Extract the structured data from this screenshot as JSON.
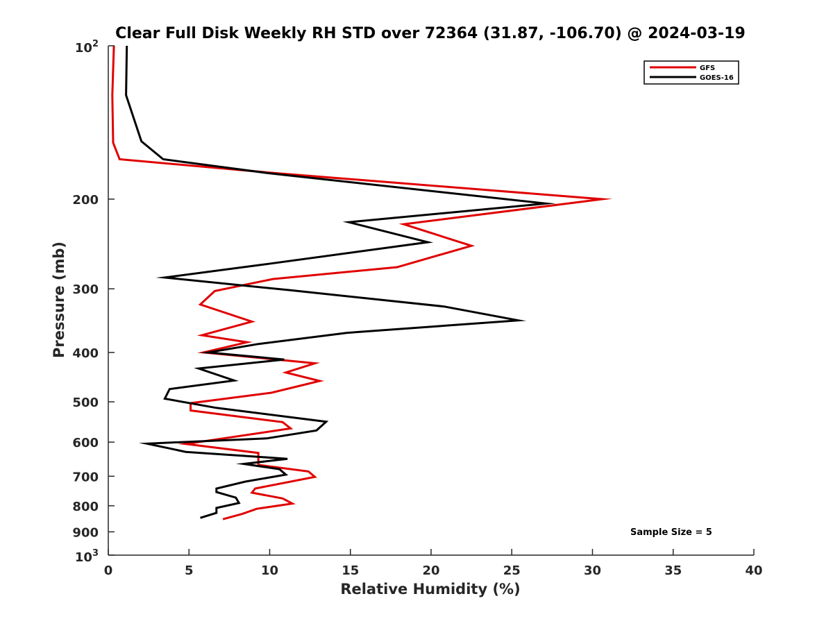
{
  "chart_data": {
    "type": "line",
    "title": "Clear Full Disk Weekly RH STD over 72364 (31.87, -106.70) @ 2024-03-19",
    "xlabel": "Relative Humidity (%)",
    "ylabel": "Pressure (mb)",
    "xlim": [
      0,
      40
    ],
    "ylim": [
      100,
      1000
    ],
    "y_scale": "log",
    "y_reversed": true,
    "x_ticks": [
      "0",
      "5",
      "10",
      "15",
      "20",
      "25",
      "30",
      "35",
      "40"
    ],
    "y_ticks": [
      {
        "value": 100,
        "base": "10",
        "exp": "2"
      },
      {
        "value": 200,
        "label": "200"
      },
      {
        "value": 300,
        "label": "300"
      },
      {
        "value": 400,
        "label": "400"
      },
      {
        "value": 500,
        "label": "500"
      },
      {
        "value": 600,
        "label": "600"
      },
      {
        "value": 700,
        "label": "700"
      },
      {
        "value": 800,
        "label": "800"
      },
      {
        "value": 900,
        "label": "900"
      },
      {
        "value": 1000,
        "base": "10",
        "exp": "3"
      }
    ],
    "legend_position": "top-right",
    "annotation": "Sample Size = 5",
    "series": [
      {
        "name": "GFS",
        "color": "#e00000",
        "x": [
          0.35,
          0.25,
          0.3,
          0.7,
          10.5,
          30.6,
          18.3,
          22.5,
          17.9,
          10.2,
          6.6,
          5.7,
          8.9,
          5.8,
          8.6,
          5.9,
          12.8,
          11.0,
          13.1,
          10.1,
          5.1,
          5.1,
          10.8,
          11.3,
          4.8,
          9.3,
          9.3,
          12.4,
          12.8,
          9.1,
          8.9,
          10.8,
          11.4,
          9.2,
          8.3,
          7.1
        ],
        "y": [
          100,
          125,
          155,
          167,
          178,
          200,
          224,
          247,
          272,
          287,
          303,
          322,
          348,
          370,
          382,
          400,
          420,
          438,
          455,
          480,
          503,
          520,
          548,
          564,
          605,
          630,
          665,
          685,
          702,
          740,
          754,
          774,
          792,
          811,
          830,
          850
        ]
      },
      {
        "name": "GOES-16",
        "color": "#000000",
        "x": [
          1.15,
          1.1,
          2.05,
          3.4,
          10.0,
          27.1,
          14.9,
          19.8,
          9.9,
          3.5,
          11.3,
          20.8,
          25.4,
          14.8,
          9.3,
          6.2,
          10.9,
          5.6,
          7.8,
          3.8,
          3.5,
          6.7,
          13.5,
          12.9,
          9.8,
          2.4,
          4.8,
          11.1,
          8.4,
          10.6,
          11.0,
          8.5,
          6.7,
          6.7,
          7.9,
          8.1,
          6.7,
          6.7,
          5.7
        ],
        "y": [
          100,
          125,
          154,
          167,
          178,
          204,
          222,
          243,
          268,
          285,
          302,
          325,
          346,
          366,
          385,
          400,
          413,
          430,
          454,
          472,
          493,
          514,
          547,
          569,
          590,
          604,
          627,
          647,
          662,
          678,
          695,
          717,
          740,
          752,
          771,
          790,
          808,
          826,
          845
        ]
      }
    ]
  }
}
